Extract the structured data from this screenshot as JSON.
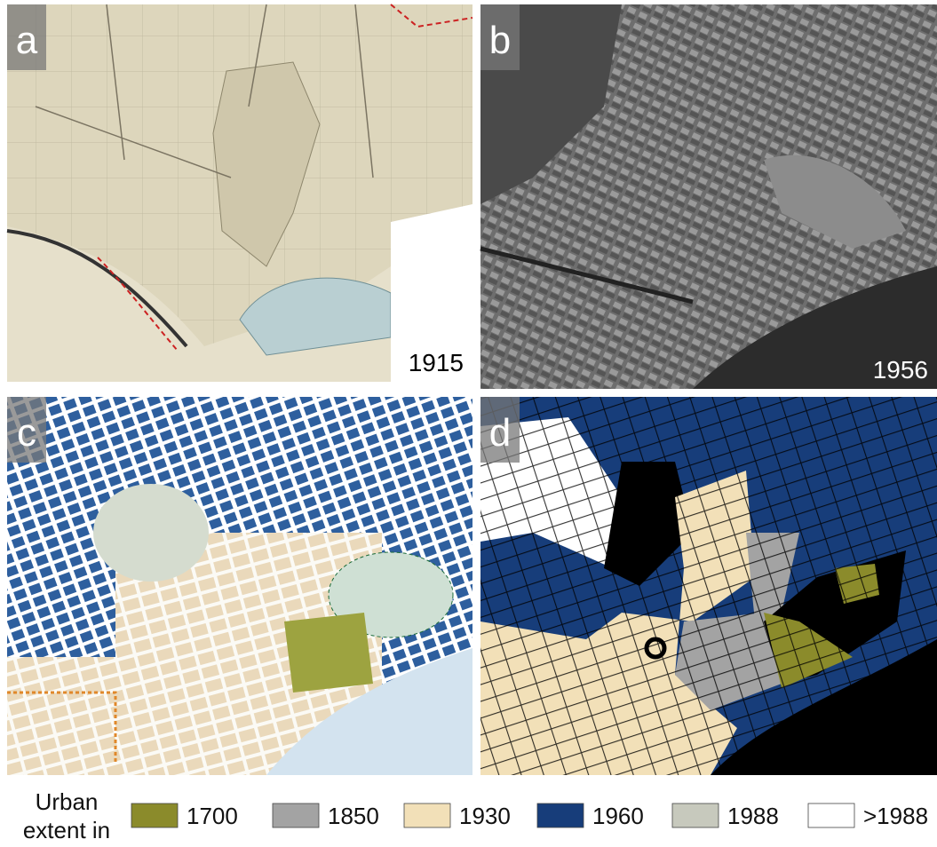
{
  "panels": [
    {
      "label": "a",
      "year": "1915"
    },
    {
      "label": "b",
      "year": "1956"
    },
    {
      "label": "c"
    },
    {
      "label": "d"
    }
  ],
  "legend": {
    "title_lines": [
      "Urban",
      "extent in"
    ],
    "items": [
      {
        "label": "1700",
        "color": "#8b8b2b"
      },
      {
        "label": "1850",
        "color": "#a3a3a3"
      },
      {
        "label": "1930",
        "color": "#f2e0b8"
      },
      {
        "label": "1960",
        "color": "#173d7a"
      },
      {
        "label": "1988",
        "color": "#c7c9bd"
      },
      {
        "label": ">1988",
        "color": "#ffffff"
      }
    ]
  }
}
